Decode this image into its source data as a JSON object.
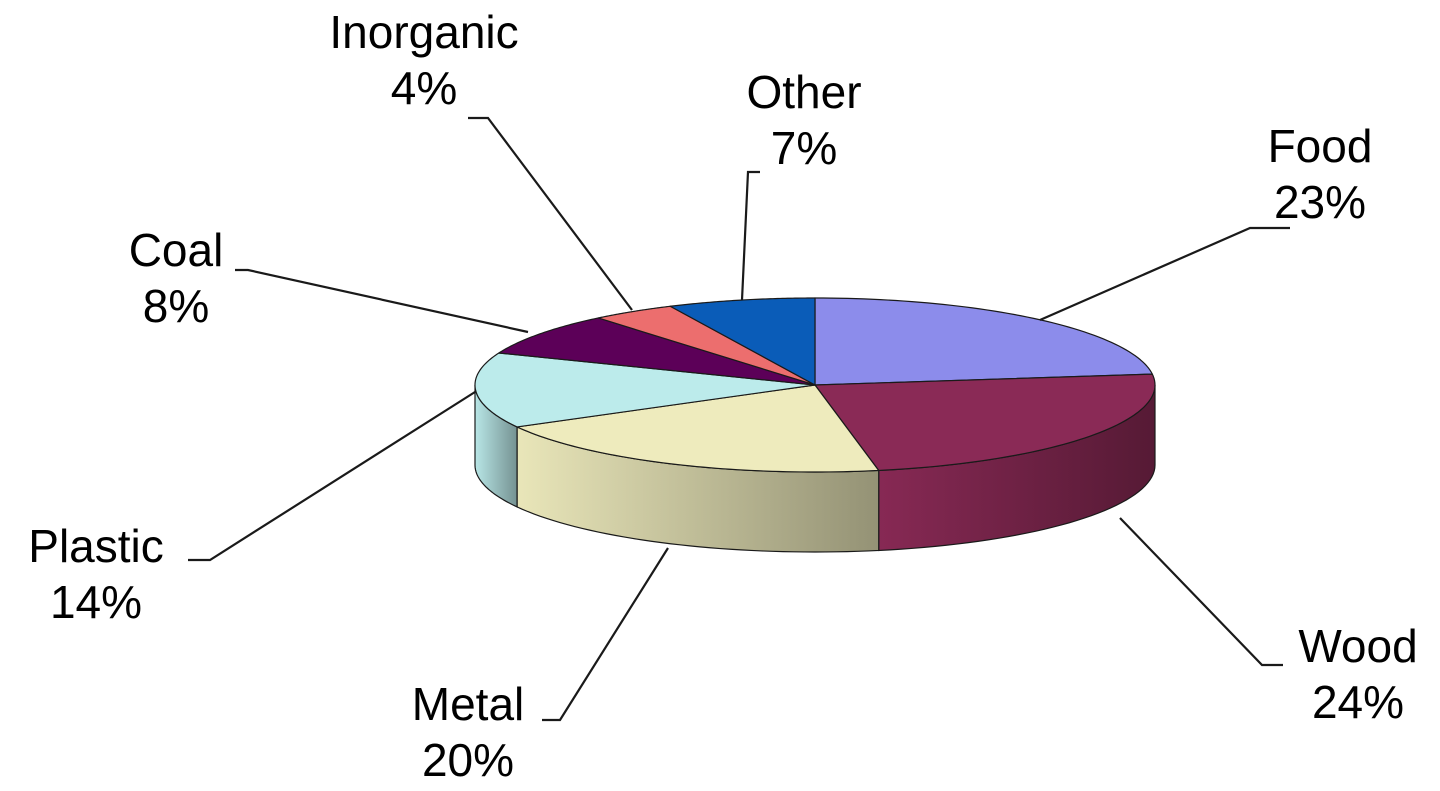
{
  "chart_data": {
    "type": "pie",
    "style": "3d",
    "title": "",
    "labels_format": "name + percent",
    "slices": [
      {
        "name": "Food",
        "value": 23,
        "label_pct": "23%",
        "color": "#8C8CEB"
      },
      {
        "name": "Wood",
        "value": 24,
        "label_pct": "24%",
        "color": "#8A2A56"
      },
      {
        "name": "Metal",
        "value": 20,
        "label_pct": "20%",
        "color": "#EEEBBD"
      },
      {
        "name": "Plastic",
        "value": 14,
        "label_pct": "14%",
        "color": "#BCEBEB"
      },
      {
        "name": "Coal",
        "value": 8,
        "label_pct": "8%",
        "color": "#5C0058"
      },
      {
        "name": "Inorganic",
        "value": 4,
        "label_pct": "4%",
        "color": "#EC6E6E"
      },
      {
        "name": "Other",
        "value": 7,
        "label_pct": "7%",
        "color": "#0A5CB8"
      }
    ],
    "legend": "none"
  }
}
